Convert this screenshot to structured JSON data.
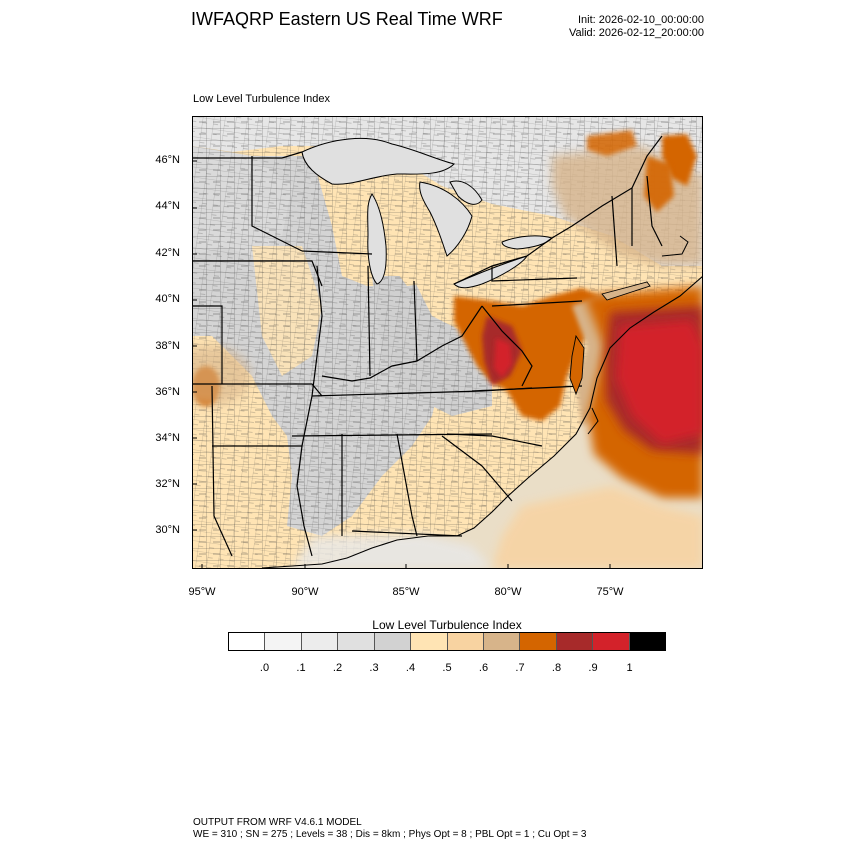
{
  "header": {
    "title": "IWFAQRP Eastern US Real Time WRF",
    "init": "Init: 2026-02-10_00:00:00",
    "valid": "Valid: 2026-02-12_20:00:00"
  },
  "map": {
    "subtitle": "Low Level Turbulence Index",
    "lat_labels": [
      "46°N",
      "44°N",
      "42°N",
      "40°N",
      "38°N",
      "36°N",
      "34°N",
      "32°N",
      "30°N"
    ],
    "lon_labels": [
      "95°W",
      "90°W",
      "85°W",
      "80°W",
      "75°W"
    ],
    "lat_range": [
      28.6,
      47.8
    ],
    "lon_range": [
      -95.7,
      -70.8
    ],
    "variable": "Low Level Turbulence Index",
    "features": [
      {
        "type": "state-boundaries",
        "color": "#000000"
      },
      {
        "type": "county-boundaries",
        "color": "#3a3a3a"
      },
      {
        "type": "great-lakes",
        "color": "#e0e0e0"
      },
      {
        "type": "atlantic-ocean",
        "color": "#ecd9b6"
      }
    ],
    "hotspots": [
      {
        "name": "mid-atlantic",
        "level": 0.9
      },
      {
        "name": "offshore-atlantic",
        "level": 0.8
      },
      {
        "name": "eastern-oklahoma",
        "level": 0.7
      },
      {
        "name": "new-england",
        "level": 0.7
      }
    ]
  },
  "legend": {
    "title": "Low Level Turbulence Index",
    "ticks": [
      ".0",
      ".1",
      ".2",
      ".3",
      ".4",
      ".5",
      ".6",
      ".7",
      ".8",
      ".9",
      "1"
    ],
    "colors": [
      "#ffffff",
      "#f4f4f4",
      "#ececec",
      "#e0e0e0",
      "#d2d2d2",
      "#ffe4b4",
      "#f8d3a1",
      "#d7b48a",
      "#d46500",
      "#a72a2a",
      "#d3222a",
      "#000000"
    ]
  },
  "footer": {
    "line1": "OUTPUT FROM WRF V4.6.1 MODEL",
    "line2": "WE = 310 ; SN = 275 ; Levels = 38 ; Dis = 8km ; Phys Opt = 8 ; PBL Opt = 1 ; Cu Opt = 3"
  }
}
